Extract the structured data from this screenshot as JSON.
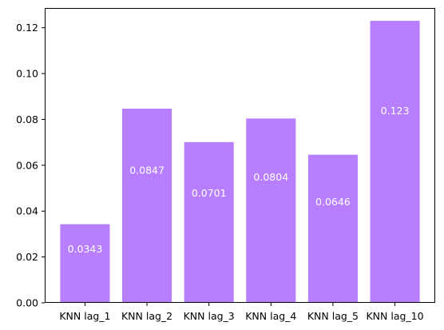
{
  "chart_data": {
    "type": "bar",
    "categories": [
      "KNN lag_1",
      "KNN lag_2",
      "KNN lag_3",
      "KNN lag_4",
      "KNN lag_5",
      "KNN lag_10"
    ],
    "values": [
      0.0343,
      0.0847,
      0.0701,
      0.0804,
      0.0646,
      0.123
    ],
    "data_labels": [
      "0.0343",
      "0.0847",
      "0.0701",
      "0.0804",
      "0.0646",
      "0.123"
    ],
    "title": "",
    "xlabel": "",
    "ylabel": "",
    "ylim": [
      0,
      0.1286
    ],
    "yticks": [
      0.0,
      0.02,
      0.04,
      0.06,
      0.08,
      0.1,
      0.12
    ],
    "ytick_labels": [
      "0.00",
      "0.02",
      "0.04",
      "0.06",
      "0.08",
      "0.10",
      "0.12"
    ],
    "grid": false,
    "legend": "none",
    "bar_color": "#b77fff",
    "label_color": "#ffffff"
  }
}
